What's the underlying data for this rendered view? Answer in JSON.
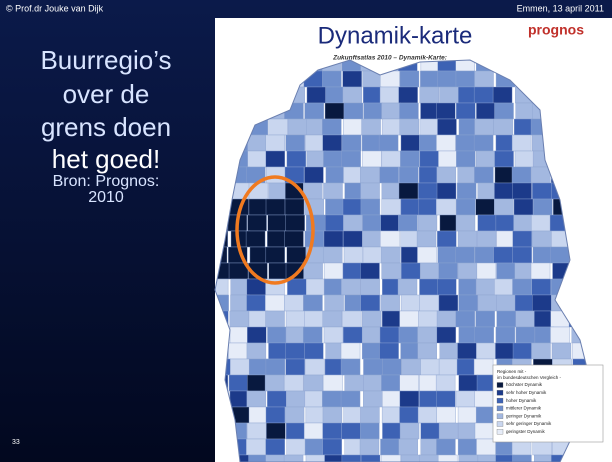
{
  "header": {
    "left": "© Prof.dr Jouke van Dijk",
    "right": "Emmen, 13 april 2011"
  },
  "slide": {
    "heading": [
      "Buurregio’s",
      "over de",
      "grens doen",
      "het goed!"
    ],
    "source": [
      "Bron: Prognos:",
      "2010"
    ],
    "number": "33"
  },
  "panel": {
    "title": "Dynamik-karte",
    "logo": "prognos",
    "subtitle": "Zukunftsatlas 2010 – Dynamik-Karte:"
  },
  "legend": {
    "title": [
      "Regionen mit -",
      "im bundesdeutschen Vergleich -"
    ],
    "items": [
      "höchster Dynamik",
      "sehr hoher Dynamik",
      "hoher Dynamik",
      "mittlerer Dynamik",
      "geringer Dynamik",
      "sehr geringer Dynamik",
      "geringster Dynamik"
    ]
  }
}
